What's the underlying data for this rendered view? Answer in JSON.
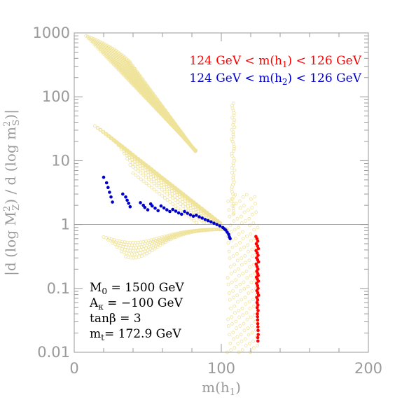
{
  "chart_data": {
    "type": "scatter",
    "xlabel": "m(h1)",
    "ylabel": "|d (log M_Z^2) / d (log m_S^2)|",
    "xlim": [
      0,
      200
    ],
    "ylim": [
      0.01,
      1000
    ],
    "y_scale": "log",
    "x_ticks": [
      "0",
      "100",
      "200"
    ],
    "y_ticks": [
      "0.01",
      "0.1",
      "1",
      "10",
      "100",
      "1000"
    ],
    "grid": false,
    "reference_line": {
      "y": 1
    },
    "legend_position": "top-right",
    "legend": [
      {
        "label": "124 GeV < m(h1) < 126 GeV",
        "color": "#ff0000"
      },
      {
        "label": "124 GeV < m(h2) < 126 GeV",
        "color": "#0000cc"
      }
    ],
    "annotations": [
      "M0 = 1500 GeV",
      "Aκ = −100 GeV",
      "tanβ = 3",
      "mt= 172.9 GeV"
    ],
    "colors": {
      "scan": "#efe39a",
      "h1_band": "#ff0000",
      "h2_band": "#0000cc"
    },
    "series": [
      {
        "name": "124 GeV < m(h2) < 126 GeV",
        "color": "#0000cc",
        "x": [
          20,
          22,
          23,
          24,
          25,
          26,
          33,
          35,
          36,
          37,
          38,
          45,
          47,
          48,
          50,
          52,
          53,
          55,
          57,
          59,
          61,
          63,
          65,
          67,
          69,
          71,
          73,
          75,
          77,
          79,
          81,
          83,
          85,
          87,
          89,
          91,
          93,
          95,
          97,
          99,
          101,
          102,
          103,
          104,
          105,
          105.5,
          106
        ],
        "y": [
          5.5,
          4.5,
          3.8,
          3.2,
          2.7,
          2.25,
          3.0,
          2.7,
          2.4,
          2.15,
          1.9,
          2.2,
          2.0,
          1.85,
          1.7,
          2.1,
          1.95,
          1.8,
          1.65,
          1.95,
          1.82,
          1.7,
          1.6,
          1.72,
          1.62,
          1.52,
          1.45,
          1.6,
          1.5,
          1.42,
          1.35,
          1.4,
          1.32,
          1.26,
          1.2,
          1.15,
          1.1,
          1.05,
          1.0,
          0.95,
          0.9,
          0.86,
          0.82,
          0.76,
          0.7,
          0.64,
          0.6
        ]
      },
      {
        "name": "124 GeV < m(h1) < 126 GeV",
        "color": "#ff0000",
        "x": [
          123.5,
          124.2,
          124.8,
          123.8,
          124.6,
          125.2,
          123.6,
          124.4,
          125.0,
          124.0,
          124.7,
          125.3,
          123.7,
          124.3,
          124.9,
          124.1,
          124.8,
          125.1,
          123.9,
          124.5,
          125.2,
          124.0,
          124.6,
          125.0,
          124.2,
          124.8,
          125.3,
          124.1,
          124.7,
          124.3,
          124.9,
          124.4,
          125.0,
          124.5,
          124.6,
          124.7,
          124.8,
          124.9,
          125.0,
          125.1,
          124.8,
          124.9
        ],
        "y": [
          0.65,
          0.6,
          0.55,
          0.5,
          0.46,
          0.42,
          0.39,
          0.36,
          0.33,
          0.3,
          0.28,
          0.26,
          0.24,
          0.22,
          0.2,
          0.185,
          0.17,
          0.16,
          0.15,
          0.14,
          0.13,
          0.12,
          0.11,
          0.1,
          0.092,
          0.085,
          0.078,
          0.072,
          0.066,
          0.06,
          0.055,
          0.05,
          0.045,
          0.04,
          0.036,
          0.032,
          0.028,
          0.025,
          0.022,
          0.019,
          0.017,
          0.015
        ]
      }
    ]
  }
}
